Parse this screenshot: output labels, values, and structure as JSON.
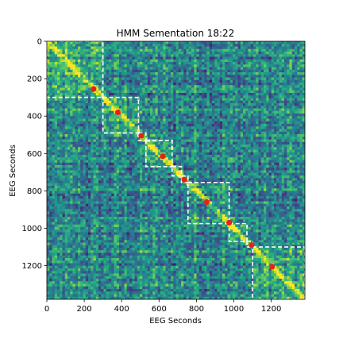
{
  "chart_data": {
    "type": "heatmap",
    "title": "HMM Sementation 18:22",
    "xlabel": "EEG Seconds",
    "ylabel": "EEG Seconds",
    "xlim": [
      0,
      1380
    ],
    "ylim": [
      1380,
      0
    ],
    "x_ticks": [
      0,
      200,
      400,
      600,
      800,
      1000,
      1200
    ],
    "y_ticks": [
      0,
      200,
      400,
      600,
      800,
      1000,
      1200
    ],
    "colormap": "viridis",
    "segments": [
      {
        "start": 0,
        "end": 300
      },
      {
        "start": 300,
        "end": 490
      },
      {
        "start": 490,
        "end": 530
      },
      {
        "start": 530,
        "end": 670
      },
      {
        "start": 670,
        "end": 720
      },
      {
        "start": 720,
        "end": 755
      },
      {
        "start": 755,
        "end": 975
      },
      {
        "start": 975,
        "end": 1070
      },
      {
        "start": 1070,
        "end": 1100
      },
      {
        "start": 1100,
        "end": 1380
      }
    ],
    "markers": [
      {
        "x": 250,
        "y": 255
      },
      {
        "x": 380,
        "y": 380
      },
      {
        "x": 505,
        "y": 505
      },
      {
        "x": 620,
        "y": 615
      },
      {
        "x": 735,
        "y": 740
      },
      {
        "x": 855,
        "y": 860
      },
      {
        "x": 975,
        "y": 970
      },
      {
        "x": 1095,
        "y": 1090
      },
      {
        "x": 1205,
        "y": 1205
      }
    ],
    "colors": {
      "marker": "#e8201c",
      "boundary": "#ffffff",
      "background": "#2a9a8a"
    }
  }
}
